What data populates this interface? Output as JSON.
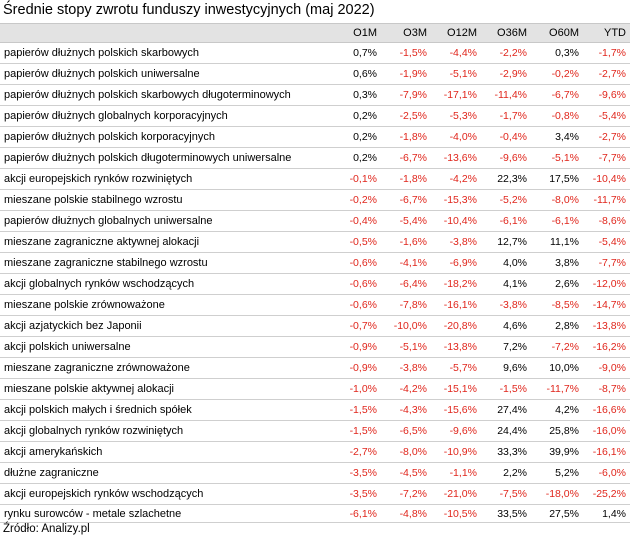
{
  "title": "Średnie stopy zwrotu funduszy inwestycyjnych (maj 2022)",
  "source": "Źródło: Analizy.pl",
  "colors": {
    "negative": "#e0261c",
    "positive": "#000000",
    "header_bg": "#e3e3e3"
  },
  "columns": [
    "",
    "O1M",
    "O3M",
    "O12M",
    "O36M",
    "O60M",
    "YTD"
  ],
  "rows": [
    {
      "name": "papierów dłużnych polskich skarbowych",
      "values": [
        "0,7%",
        "-1,5%",
        "-4,4%",
        "-2,2%",
        "0,3%",
        "-1,7%"
      ]
    },
    {
      "name": "papierów dłużnych polskich uniwersalne",
      "values": [
        "0,6%",
        "-1,9%",
        "-5,1%",
        "-2,9%",
        "-0,2%",
        "-2,7%"
      ]
    },
    {
      "name": "papierów dłużnych polskich skarbowych długoterminowych",
      "values": [
        "0,3%",
        "-7,9%",
        "-17,1%",
        "-11,4%",
        "-6,7%",
        "-9,6%"
      ]
    },
    {
      "name": "papierów dłużnych globalnych korporacyjnych",
      "values": [
        "0,2%",
        "-2,5%",
        "-5,3%",
        "-1,7%",
        "-0,8%",
        "-5,4%"
      ]
    },
    {
      "name": "papierów dłużnych polskich korporacyjnych",
      "values": [
        "0,2%",
        "-1,8%",
        "-4,0%",
        "-0,4%",
        "3,4%",
        "-2,7%"
      ]
    },
    {
      "name": "papierów dłużnych polskich długoterminowych uniwersalne",
      "values": [
        "0,2%",
        "-6,7%",
        "-13,6%",
        "-9,6%",
        "-5,1%",
        "-7,7%"
      ]
    },
    {
      "name": "akcji europejskich rynków rozwiniętych",
      "values": [
        "-0,1%",
        "-1,8%",
        "-4,2%",
        "22,3%",
        "17,5%",
        "-10,4%"
      ]
    },
    {
      "name": "mieszane polskie stabilnego wzrostu",
      "values": [
        "-0,2%",
        "-6,7%",
        "-15,3%",
        "-5,2%",
        "-8,0%",
        "-11,7%"
      ]
    },
    {
      "name": "papierów dłużnych globalnych uniwersalne",
      "values": [
        "-0,4%",
        "-5,4%",
        "-10,4%",
        "-6,1%",
        "-6,1%",
        "-8,6%"
      ]
    },
    {
      "name": "mieszane zagraniczne aktywnej alokacji",
      "values": [
        "-0,5%",
        "-1,6%",
        "-3,8%",
        "12,7%",
        "11,1%",
        "-5,4%"
      ]
    },
    {
      "name": "mieszane zagraniczne stabilnego wzrostu",
      "values": [
        "-0,6%",
        "-4,1%",
        "-6,9%",
        "4,0%",
        "3,8%",
        "-7,7%"
      ]
    },
    {
      "name": "akcji globalnych rynków wschodzących",
      "values": [
        "-0,6%",
        "-6,4%",
        "-18,2%",
        "4,1%",
        "2,6%",
        "-12,0%"
      ]
    },
    {
      "name": "mieszane polskie zrównoważone",
      "values": [
        "-0,6%",
        "-7,8%",
        "-16,1%",
        "-3,8%",
        "-8,5%",
        "-14,7%"
      ]
    },
    {
      "name": "akcji azjatyckich bez Japonii",
      "values": [
        "-0,7%",
        "-10,0%",
        "-20,8%",
        "4,6%",
        "2,8%",
        "-13,8%"
      ]
    },
    {
      "name": "akcji polskich uniwersalne",
      "values": [
        "-0,9%",
        "-5,1%",
        "-13,8%",
        "7,2%",
        "-7,2%",
        "-16,2%"
      ]
    },
    {
      "name": "mieszane zagraniczne zrównoważone",
      "values": [
        "-0,9%",
        "-3,8%",
        "-5,7%",
        "9,6%",
        "10,0%",
        "-9,0%"
      ]
    },
    {
      "name": "mieszane polskie aktywnej alokacji",
      "values": [
        "-1,0%",
        "-4,2%",
        "-15,1%",
        "-1,5%",
        "-11,7%",
        "-8,7%"
      ]
    },
    {
      "name": "akcji polskich małych i średnich spółek",
      "values": [
        "-1,5%",
        "-4,3%",
        "-15,6%",
        "27,4%",
        "4,2%",
        "-16,6%"
      ]
    },
    {
      "name": "akcji globalnych rynków rozwiniętych",
      "values": [
        "-1,5%",
        "-6,5%",
        "-9,6%",
        "24,4%",
        "25,8%",
        "-16,0%"
      ]
    },
    {
      "name": "akcji amerykańskich",
      "values": [
        "-2,7%",
        "-8,0%",
        "-10,9%",
        "33,3%",
        "39,9%",
        "-16,1%"
      ]
    },
    {
      "name": "dłużne zagraniczne",
      "values": [
        "-3,5%",
        "-4,5%",
        "-1,1%",
        "2,2%",
        "5,2%",
        "-6,0%"
      ]
    },
    {
      "name": "akcji europejskich rynków wschodzących",
      "values": [
        "-3,5%",
        "-7,2%",
        "-21,0%",
        "-7,5%",
        "-18,0%",
        "-25,2%"
      ]
    },
    {
      "name": "rynku surowców - metale szlachetne",
      "values": [
        "-6,1%",
        "-4,8%",
        "-10,5%",
        "33,5%",
        "27,5%",
        "1,4%"
      ]
    }
  ]
}
